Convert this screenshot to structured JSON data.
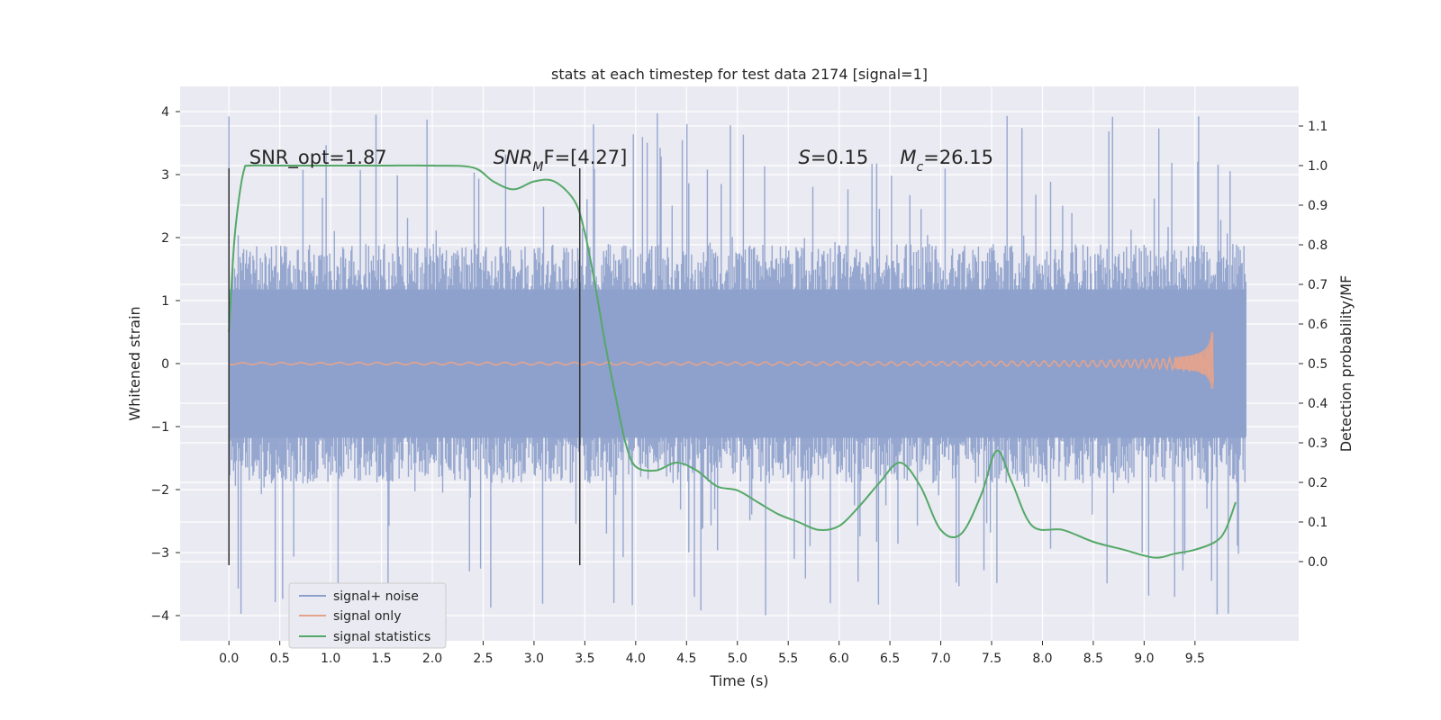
{
  "chart_data": {
    "type": "line",
    "title": "stats at each timestep for test data 2174 [signal=1]",
    "xlabel": "Time (s)",
    "ylabel": "Whitened strain",
    "y2label": "Detection probability/MF",
    "xlim": [
      -0.48,
      10.52
    ],
    "ylim": [
      -4.4,
      4.4
    ],
    "y2lim": [
      -0.2,
      1.2
    ],
    "xticks": [
      "0.0",
      "0.5",
      "1.0",
      "1.5",
      "2.0",
      "2.5",
      "3.0",
      "3.5",
      "4.0",
      "4.5",
      "5.0",
      "5.5",
      "6.0",
      "6.5",
      "7.0",
      "7.5",
      "8.0",
      "8.5",
      "9.0",
      "9.5"
    ],
    "yticks": [
      "4",
      "3",
      "2",
      "1",
      "0",
      "−1",
      "−2",
      "−3",
      "−4"
    ],
    "y2ticks": [
      "1.1",
      "1.0",
      "0.9",
      "0.8",
      "0.7",
      "0.6",
      "0.5",
      "0.4",
      "0.3",
      "0.2",
      "0.1",
      "0.0"
    ],
    "grid": true,
    "legend_position": "lower-left",
    "colors": {
      "background": "#eaeaf2",
      "noise": "#8da0cb",
      "signal": "#e5a38c",
      "stats": "#55a868",
      "vline": "#333333"
    },
    "series": [
      {
        "name": "signal+ noise",
        "kind": "noise-band",
        "x_range": [
          0.0,
          10.0
        ],
        "typical_range": [
          -1.9,
          1.9
        ],
        "extreme_range": [
          -4.0,
          4.0
        ]
      },
      {
        "name": "signal only",
        "kind": "chirp",
        "x_range": [
          0.0,
          9.68
        ],
        "peak_time": 9.68,
        "peak_amplitude": 0.5
      },
      {
        "name": "signal statistics",
        "axis": "y2",
        "x": [
          0.0,
          0.05,
          0.1,
          0.15,
          0.2,
          0.5,
          1.0,
          1.5,
          2.0,
          2.4,
          2.6,
          2.8,
          3.0,
          3.2,
          3.4,
          3.5,
          3.6,
          3.7,
          3.8,
          3.9,
          4.0,
          4.2,
          4.4,
          4.6,
          4.8,
          5.0,
          5.2,
          5.4,
          5.6,
          5.8,
          6.0,
          6.2,
          6.4,
          6.6,
          6.8,
          7.0,
          7.2,
          7.4,
          7.55,
          7.7,
          7.9,
          8.2,
          8.5,
          8.8,
          9.1,
          9.3,
          9.5,
          9.7,
          9.8,
          9.9
        ],
        "y": [
          0.58,
          0.8,
          0.92,
          0.99,
          1.0,
          1.0,
          1.0,
          1.0,
          1.0,
          0.995,
          0.96,
          0.94,
          0.96,
          0.96,
          0.91,
          0.83,
          0.7,
          0.55,
          0.42,
          0.3,
          0.24,
          0.23,
          0.25,
          0.23,
          0.19,
          0.18,
          0.15,
          0.12,
          0.1,
          0.08,
          0.09,
          0.14,
          0.2,
          0.25,
          0.19,
          0.08,
          0.07,
          0.17,
          0.28,
          0.2,
          0.09,
          0.08,
          0.05,
          0.03,
          0.01,
          0.02,
          0.03,
          0.05,
          0.08,
          0.15
        ]
      }
    ],
    "vlines": [
      0.0,
      3.45
    ],
    "annotations": [
      {
        "x": 0.2,
        "y": 1.0,
        "text": "SNR_opt=1.87"
      },
      {
        "x": 2.6,
        "y": 1.0,
        "text": "SNR",
        "sub": "M",
        "rest": "F=[4.27]"
      },
      {
        "x": 5.6,
        "y": 1.0,
        "text": "S",
        "rest": "=0.15"
      },
      {
        "x": 6.6,
        "y": 1.0,
        "text": "M",
        "sub": "c",
        "rest": "=26.15"
      }
    ]
  }
}
